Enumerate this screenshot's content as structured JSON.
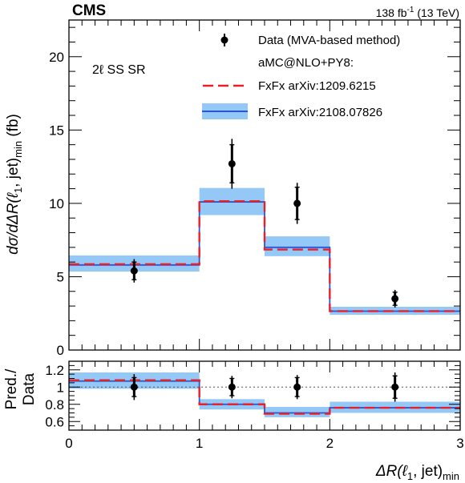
{
  "header": {
    "experiment": "CMS",
    "luminosity": "138 fb",
    "luminosity_exp": "-1",
    "energy": " (13 TeV)"
  },
  "chart_data": {
    "type": "histogram",
    "region_label": "2ℓ SS SR",
    "bin_edges": [
      0,
      1,
      1.5,
      2,
      3
    ],
    "x_ticks": [
      "0",
      "1",
      "2",
      "3"
    ],
    "xlabel": {
      "main": "ΔR(ℓ",
      "sub1": "1",
      "after": ", jet)",
      "sub2": "min"
    },
    "ylabel": {
      "main": "dσ/dΔR(ℓ",
      "sub1": "1",
      "after": ", jet)",
      "sub2": "min",
      "unit": " (fb)"
    },
    "xlim": [
      0,
      3
    ],
    "main_panel": {
      "ylim": [
        0,
        22.5
      ],
      "y_ticks": [
        "0",
        "5",
        "10",
        "15",
        "20"
      ],
      "data": {
        "name": "Data (MVA-based method)",
        "x": [
          0.5,
          1.25,
          1.75,
          2.5
        ],
        "y": [
          5.4,
          12.7,
          10.0,
          3.5
        ],
        "err_total": [
          0.8,
          1.7,
          1.4,
          0.6
        ],
        "err_stat": [
          0.6,
          1.3,
          1.1,
          0.45
        ]
      },
      "generator_label": "aMC@NLO+PY8:",
      "series": [
        {
          "name": "FxFx arXiv:1209.6215",
          "values": [
            5.85,
            10.15,
            6.85,
            2.65
          ],
          "color": "#e8202a"
        },
        {
          "name": "FxFx arXiv:2108.07826",
          "values": [
            5.8,
            10.1,
            7.0,
            2.65
          ],
          "band_low": [
            5.35,
            9.2,
            6.4,
            2.4
          ],
          "band_high": [
            6.45,
            11.05,
            7.75,
            2.95
          ],
          "color": "#2a55d5",
          "band_color": "#94c8f7"
        }
      ]
    },
    "ratio_panel": {
      "ylabel_line1": "Pred./",
      "ylabel_line2": "Data",
      "ylim": [
        0.5,
        1.3
      ],
      "y_ticks": [
        "0.6",
        "0.8",
        "1",
        "1.2"
      ],
      "reference": 1.0,
      "data": {
        "x": [
          0.5,
          1.25,
          1.75,
          2.5
        ],
        "y": [
          1.0,
          1.0,
          1.0,
          1.0
        ],
        "err_total": [
          0.15,
          0.13,
          0.14,
          0.17
        ],
        "err_stat": [
          0.11,
          0.1,
          0.11,
          0.13
        ]
      },
      "series": [
        {
          "name": "FxFx arXiv:1209.6215",
          "values": [
            1.08,
            0.8,
            0.69,
            0.76
          ]
        },
        {
          "name": "FxFx arXiv:2108.07826",
          "values": [
            1.07,
            0.8,
            0.7,
            0.76
          ],
          "band_low": [
            0.98,
            0.74,
            0.65,
            0.7
          ],
          "band_high": [
            1.17,
            0.86,
            0.77,
            0.83
          ]
        }
      ]
    }
  }
}
